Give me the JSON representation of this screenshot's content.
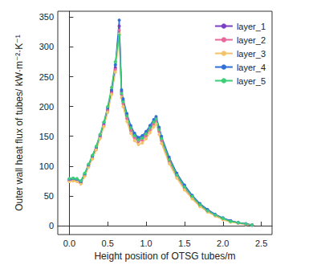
{
  "chart_data": {
    "type": "line",
    "x_label": "Height position of OTSG tubes/m",
    "y_label": "Outer wall heat flux of tubes/ kW·m⁻²·K⁻¹",
    "x": [
      0,
      0.05,
      0.1,
      0.15,
      0.2,
      0.25,
      0.3,
      0.35,
      0.4,
      0.45,
      0.5,
      0.55,
      0.6,
      0.65,
      0.68,
      0.7,
      0.75,
      0.8,
      0.85,
      0.9,
      0.95,
      1.0,
      1.05,
      1.1,
      1.13,
      1.17,
      1.2,
      1.3,
      1.4,
      1.5,
      1.6,
      1.7,
      1.8,
      1.9,
      2.0,
      2.1,
      2.2,
      2.3,
      2.38
    ],
    "series": [
      {
        "name": "layer_1",
        "color": "#7b3fc4",
        "values": [
          76,
          77,
          76,
          72,
          85,
          100,
          115,
          130,
          150,
          170,
          195,
          225,
          265,
          335,
          225,
          210,
          185,
          165,
          152,
          145,
          148,
          155,
          165,
          175,
          180,
          162,
          147,
          112,
          86,
          66,
          49,
          36,
          26,
          18,
          12,
          8,
          5,
          3,
          1
        ]
      },
      {
        "name": "layer_2",
        "color": "#e8689c",
        "values": [
          75,
          76,
          75,
          71,
          84,
          99,
          113,
          128,
          148,
          168,
          193,
          222,
          262,
          328,
          220,
          205,
          180,
          160,
          148,
          141,
          144,
          151,
          161,
          171,
          176,
          158,
          143,
          108,
          83,
          63,
          47,
          34,
          24,
          17,
          11,
          7,
          4,
          2,
          1
        ]
      },
      {
        "name": "layer_3",
        "color": "#f2c36b",
        "values": [
          74,
          75,
          74,
          70,
          83,
          98,
          112,
          127,
          146,
          166,
          190,
          220,
          258,
          322,
          215,
          200,
          175,
          155,
          143,
          136,
          139,
          146,
          156,
          166,
          171,
          153,
          138,
          104,
          80,
          60,
          45,
          32,
          23,
          16,
          10,
          6,
          4,
          2,
          1
        ]
      },
      {
        "name": "layer_4",
        "color": "#2f6fd6",
        "values": [
          78,
          79,
          78,
          74,
          87,
          102,
          117,
          132,
          152,
          173,
          198,
          228,
          270,
          345,
          228,
          213,
          188,
          168,
          155,
          148,
          151,
          158,
          168,
          178,
          183,
          165,
          150,
          115,
          88,
          68,
          51,
          37,
          27,
          19,
          13,
          8,
          5,
          3,
          1
        ]
      },
      {
        "name": "layer_5",
        "color": "#3ccf78",
        "values": [
          79,
          80,
          79,
          75,
          88,
          103,
          118,
          133,
          153,
          174,
          200,
          232,
          275,
          320,
          222,
          208,
          184,
          164,
          151,
          144,
          147,
          154,
          164,
          174,
          179,
          161,
          146,
          111,
          85,
          65,
          49,
          35,
          25,
          18,
          12,
          7,
          5,
          3,
          1
        ]
      }
    ],
    "xlim": [
      -0.15,
      2.64
    ],
    "xticks": [
      {
        "value": 0,
        "label": "0.0"
      },
      0.5,
      {
        "value": 1,
        "label": "1.0"
      },
      1.5,
      {
        "value": 2,
        "label": "2.0"
      },
      2.5
    ],
    "ylim": [
      -15,
      360
    ],
    "yticks": [
      0,
      50,
      100,
      150,
      200,
      250,
      300,
      350
    ],
    "grid": false,
    "legend": "upper right",
    "marker": "circle"
  }
}
